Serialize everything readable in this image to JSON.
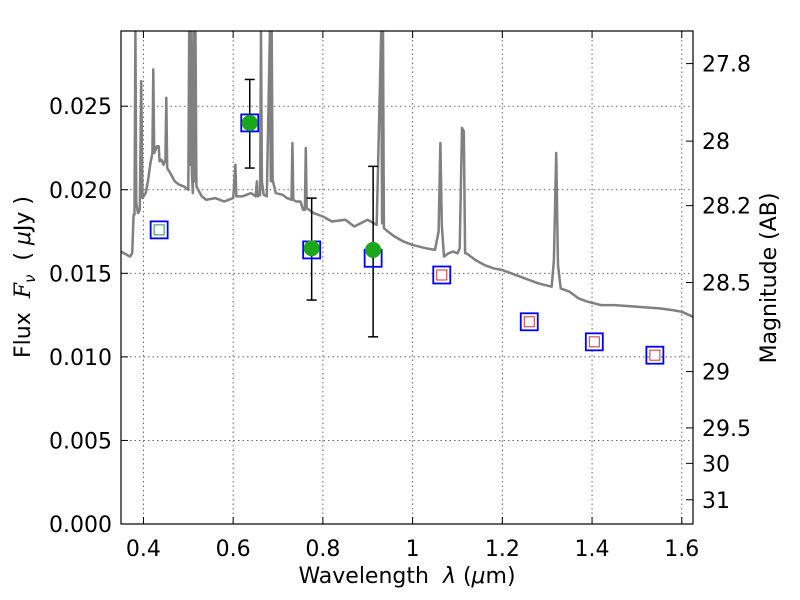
{
  "chart_data": {
    "type": "scatter",
    "xlabel_parts": [
      "Wavelength  ",
      "λ",
      " (",
      "μ",
      "m)"
    ],
    "ylabel_parts": [
      "Flux  ",
      "F",
      "ν",
      "  ( ",
      "μ",
      "Jy )"
    ],
    "ylabel_right": "Magnitude (AB)",
    "xlim": [
      0.35,
      1.625
    ],
    "ylim": [
      0.0,
      0.0295
    ],
    "grid": true,
    "x_ticks": [
      {
        "value": 0.4,
        "label": "0.4"
      },
      {
        "value": 0.6,
        "label": "0.6"
      },
      {
        "value": 0.8,
        "label": "0.8"
      },
      {
        "value": 1.0,
        "label": "1"
      },
      {
        "value": 1.2,
        "label": "1.2"
      },
      {
        "value": 1.4,
        "label": "1.4"
      },
      {
        "value": 1.6,
        "label": "1.6"
      }
    ],
    "y_ticks": [
      {
        "value": 0.0,
        "label": "0.000"
      },
      {
        "value": 0.005,
        "label": "0.005"
      },
      {
        "value": 0.01,
        "label": "0.010"
      },
      {
        "value": 0.015,
        "label": "0.015"
      },
      {
        "value": 0.02,
        "label": "0.020"
      },
      {
        "value": 0.025,
        "label": "0.025"
      }
    ],
    "right_ticks": [
      {
        "label": "27.8",
        "flux": 0.02755
      },
      {
        "label": "28",
        "flux": 0.02291
      },
      {
        "label": "28.2",
        "flux": 0.01905
      },
      {
        "label": "28.5",
        "flux": 0.01445
      },
      {
        "label": "29",
        "flux": 0.00912
      },
      {
        "label": "29.5",
        "flux": 0.00575
      },
      {
        "label": "30",
        "flux": 0.00363
      },
      {
        "label": "31",
        "flux": 0.00145
      }
    ],
    "colors": {
      "spectrum": "#808080",
      "observed": "#1aa81a",
      "model_box": "#0000ff",
      "model_inner_blue_band": "#2e8b57",
      "model_inner_ir": "#cc3333",
      "error_bar": "#000000",
      "grid": "#666666"
    },
    "series": [
      {
        "kind": "spectrum",
        "points": [
          [
            0.35,
            0.0163
          ],
          [
            0.37,
            0.016
          ],
          [
            0.375,
            0.0162
          ],
          [
            0.378,
            0.0185
          ],
          [
            0.38,
            0.0185
          ],
          [
            0.382,
            0.0295
          ],
          [
            0.384,
            0.0192
          ],
          [
            0.388,
            0.0186
          ],
          [
            0.392,
            0.0188
          ],
          [
            0.395,
            0.0265
          ],
          [
            0.398,
            0.0195
          ],
          [
            0.405,
            0.0198
          ],
          [
            0.41,
            0.0205
          ],
          [
            0.415,
            0.0215
          ],
          [
            0.42,
            0.0222
          ],
          [
            0.422,
            0.0272
          ],
          [
            0.424,
            0.0222
          ],
          [
            0.43,
            0.0226
          ],
          [
            0.434,
            0.0226
          ],
          [
            0.436,
            0.0217
          ],
          [
            0.44,
            0.0218
          ],
          [
            0.445,
            0.0215
          ],
          [
            0.449,
            0.0218
          ],
          [
            0.451,
            0.0255
          ],
          [
            0.453,
            0.0213
          ],
          [
            0.46,
            0.021
          ],
          [
            0.47,
            0.0205
          ],
          [
            0.48,
            0.0203
          ],
          [
            0.49,
            0.0202
          ],
          [
            0.5,
            0.02
          ],
          [
            0.502,
            0.0295
          ],
          [
            0.504,
            0.0215
          ],
          [
            0.506,
            0.0295
          ],
          [
            0.508,
            0.021
          ],
          [
            0.51,
            0.0198
          ],
          [
            0.512,
            0.0295
          ],
          [
            0.514,
            0.0205
          ],
          [
            0.516,
            0.0295
          ],
          [
            0.518,
            0.0202
          ],
          [
            0.53,
            0.0196
          ],
          [
            0.54,
            0.0194
          ],
          [
            0.56,
            0.0195
          ],
          [
            0.58,
            0.0193
          ],
          [
            0.6,
            0.0195
          ],
          [
            0.605,
            0.0215
          ],
          [
            0.607,
            0.0196
          ],
          [
            0.62,
            0.0196
          ],
          [
            0.64,
            0.0198
          ],
          [
            0.65,
            0.0196
          ],
          [
            0.653,
            0.0205
          ],
          [
            0.655,
            0.0196
          ],
          [
            0.66,
            0.0197
          ],
          [
            0.662,
            0.0295
          ],
          [
            0.664,
            0.0205
          ],
          [
            0.668,
            0.0197
          ],
          [
            0.675,
            0.0196
          ],
          [
            0.682,
            0.0295
          ],
          [
            0.684,
            0.0205
          ],
          [
            0.686,
            0.0295
          ],
          [
            0.688,
            0.0206
          ],
          [
            0.695,
            0.0198
          ],
          [
            0.71,
            0.0197
          ],
          [
            0.72,
            0.0195
          ],
          [
            0.73,
            0.0194
          ],
          [
            0.732,
            0.0228
          ],
          [
            0.734,
            0.0194
          ],
          [
            0.74,
            0.0193
          ],
          [
            0.75,
            0.0193
          ],
          [
            0.756,
            0.0188
          ],
          [
            0.76,
            0.0188
          ],
          [
            0.762,
            0.0225
          ],
          [
            0.764,
            0.0189
          ],
          [
            0.78,
            0.0186
          ],
          [
            0.8,
            0.0184
          ],
          [
            0.82,
            0.0181
          ],
          [
            0.85,
            0.0182
          ],
          [
            0.87,
            0.0178
          ],
          [
            0.9,
            0.0182
          ],
          [
            0.92,
            0.0179
          ],
          [
            0.93,
            0.0295
          ],
          [
            0.932,
            0.018
          ],
          [
            0.934,
            0.0295
          ],
          [
            0.936,
            0.0177
          ],
          [
            0.945,
            0.0175
          ],
          [
            0.96,
            0.0172
          ],
          [
            0.98,
            0.0169
          ],
          [
            1.0,
            0.0167
          ],
          [
            1.03,
            0.0165
          ],
          [
            1.05,
            0.0164
          ],
          [
            1.058,
            0.0175
          ],
          [
            1.062,
            0.0228
          ],
          [
            1.065,
            0.0179
          ],
          [
            1.07,
            0.016
          ],
          [
            1.08,
            0.0162
          ],
          [
            1.09,
            0.0163
          ],
          [
            1.1,
            0.0162
          ],
          [
            1.105,
            0.0165
          ],
          [
            1.11,
            0.0237
          ],
          [
            1.114,
            0.0235
          ],
          [
            1.117,
            0.0162
          ],
          [
            1.12,
            0.0162
          ],
          [
            1.14,
            0.0158
          ],
          [
            1.16,
            0.0155
          ],
          [
            1.18,
            0.0153
          ],
          [
            1.2,
            0.0152
          ],
          [
            1.24,
            0.0148
          ],
          [
            1.28,
            0.0144
          ],
          [
            1.31,
            0.0142
          ],
          [
            1.315,
            0.0158
          ],
          [
            1.32,
            0.0222
          ],
          [
            1.324,
            0.0155
          ],
          [
            1.33,
            0.0141
          ],
          [
            1.35,
            0.0139
          ],
          [
            1.37,
            0.0135
          ],
          [
            1.39,
            0.0133
          ],
          [
            1.42,
            0.0131
          ],
          [
            1.45,
            0.0131
          ],
          [
            1.5,
            0.013
          ],
          [
            1.55,
            0.0129
          ],
          [
            1.58,
            0.0128
          ],
          [
            1.6,
            0.0127
          ],
          [
            1.625,
            0.0124
          ]
        ]
      },
      {
        "kind": "observed",
        "points": [
          {
            "x": 0.637,
            "y": 0.024,
            "yerr_low": 0.0213,
            "yerr_high": 0.0266
          },
          {
            "x": 0.775,
            "y": 0.0165,
            "yerr_low": 0.0134,
            "yerr_high": 0.0195
          },
          {
            "x": 0.912,
            "y": 0.0164,
            "yerr_low": 0.0112,
            "yerr_high": 0.0214
          }
        ]
      },
      {
        "kind": "model",
        "points": [
          {
            "x": 0.435,
            "y": 0.0176,
            "inner": "model_inner_blue_band"
          },
          {
            "x": 0.637,
            "y": 0.024,
            "inner": "none"
          },
          {
            "x": 0.775,
            "y": 0.0164,
            "inner": "none"
          },
          {
            "x": 0.912,
            "y": 0.0159,
            "inner": "none"
          },
          {
            "x": 1.065,
            "y": 0.0149,
            "inner": "model_inner_ir"
          },
          {
            "x": 1.26,
            "y": 0.0121,
            "inner": "model_inner_ir"
          },
          {
            "x": 1.405,
            "y": 0.0109,
            "inner": "model_inner_ir"
          },
          {
            "x": 1.54,
            "y": 0.0101,
            "inner": "model_inner_ir"
          }
        ]
      }
    ]
  }
}
